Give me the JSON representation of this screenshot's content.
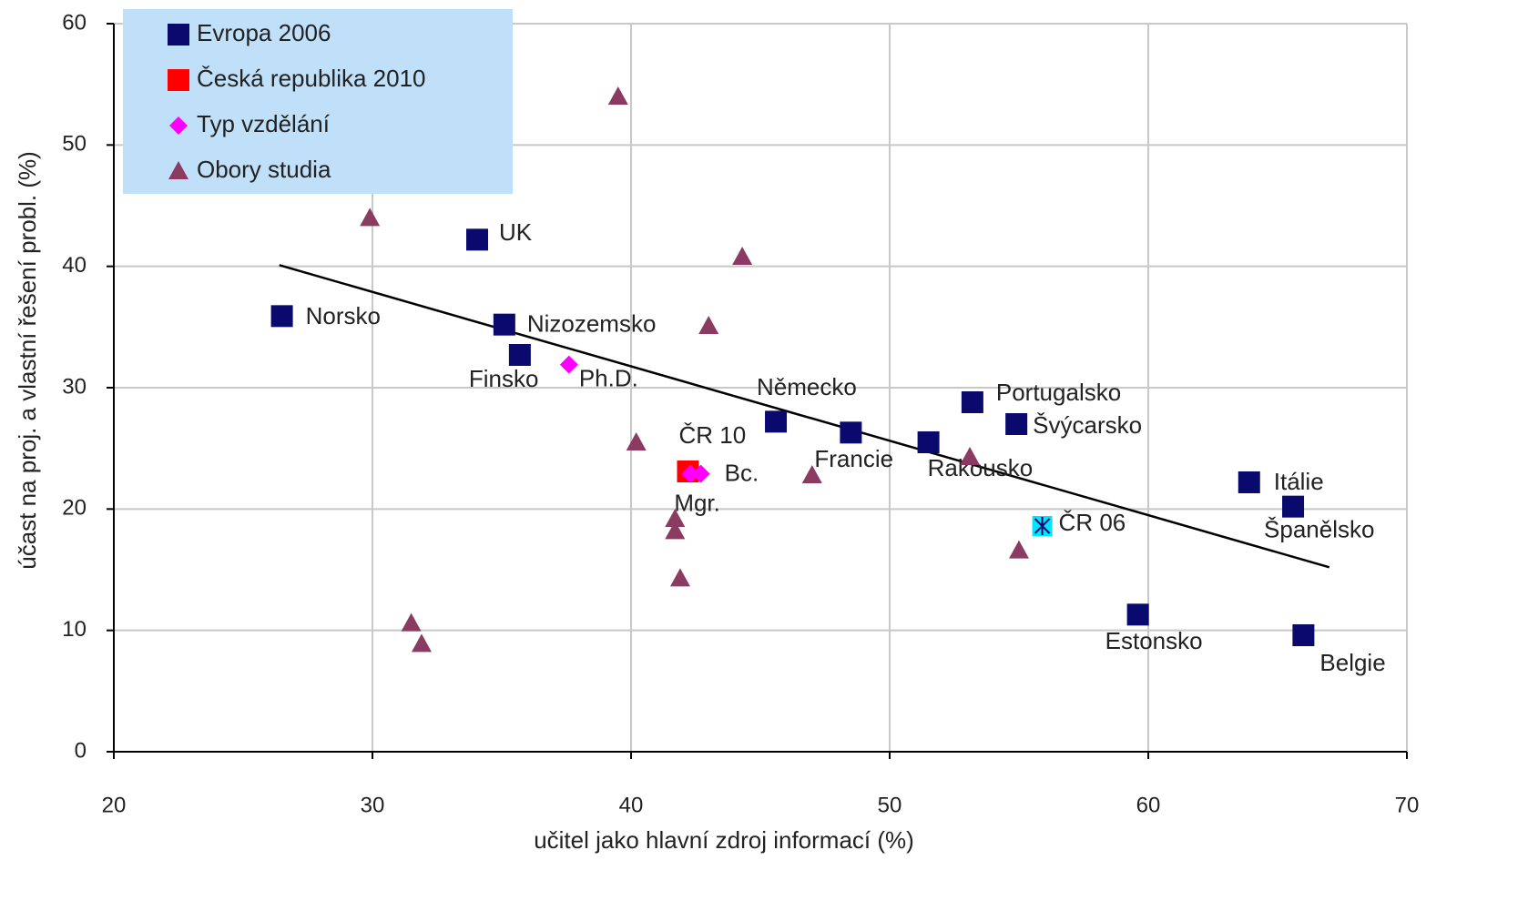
{
  "chart_data": {
    "type": "scatter",
    "x_label": "učitel jako hlavní zdroj informací (%)",
    "y_label": "účast na proj. a vlastní řešení probl. (%)",
    "xlim": [
      20,
      70
    ],
    "xticks": [
      20,
      30,
      40,
      50,
      60,
      70
    ],
    "ylim": [
      0,
      60
    ],
    "yticks": [
      0,
      10,
      20,
      30,
      40,
      50,
      60
    ],
    "grid": true,
    "legend": "top-left",
    "series": [
      {
        "name": "Evropa 2006",
        "color": "#0a0a6e",
        "marker": "square",
        "x": [
          34.05,
          26.5,
          35.1,
          35.7,
          45.6,
          48.5,
          51.5,
          53.2,
          54.9,
          63.9,
          65.6,
          59.6,
          66.0
        ],
        "values": [
          42.2,
          35.9,
          35.2,
          32.7,
          27.2,
          26.3,
          25.5,
          28.8,
          27.0,
          22.2,
          20.2,
          11.3,
          9.6
        ],
        "labels": [
          "UK",
          "Norsko",
          "Nizozemsko",
          "Finsko",
          "Německo",
          "Francie",
          "Rakousko",
          "Portugalsko",
          "Švýcarsko",
          "Itálie",
          "Španělsko",
          "Estonsko",
          "Belgie"
        ]
      },
      {
        "name": "Česká republika 2010",
        "color": "#ff0000",
        "marker": "square",
        "x": [
          42.2
        ],
        "values": [
          23.1
        ],
        "labels": [
          "ČR 10"
        ]
      },
      {
        "name": "Typ vzdělání",
        "color": "#ff00ff",
        "marker": "diamond",
        "x": [
          37.6,
          42.3,
          42.7
        ],
        "values": [
          31.9,
          22.9,
          22.9
        ],
        "labels": [
          "Ph.D.",
          "Mgr.",
          "Bc."
        ]
      },
      {
        "name": "Obory studia",
        "color": "#8b3a62",
        "marker": "triangle",
        "x": [
          39.5,
          29.9,
          44.3,
          43.0,
          40.2,
          47.0,
          53.1,
          55.0,
          41.7,
          41.7,
          41.9,
          31.5,
          31.9
        ],
        "values": [
          54.0,
          44.0,
          40.8,
          35.1,
          25.5,
          22.8,
          24.3,
          16.6,
          19.2,
          18.2,
          14.3,
          10.6,
          8.9
        ]
      }
    ],
    "extra_points": [
      {
        "label": "ČR 06",
        "x": 55.9,
        "y": 18.6,
        "color": "#00e5ff"
      }
    ],
    "trendline": {
      "color": "#000000",
      "x": [
        26.4,
        67.0
      ],
      "y": [
        40.1,
        15.2
      ]
    }
  }
}
